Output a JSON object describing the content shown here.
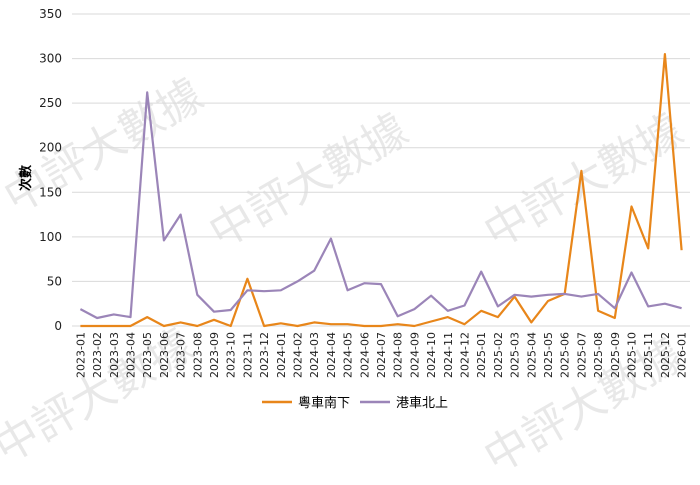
{
  "watermark": "中評大數據",
  "chart_data": {
    "type": "line",
    "ylabel": "次數",
    "ylim": [
      0,
      350
    ],
    "yticks": [
      0,
      50,
      100,
      150,
      200,
      250,
      300,
      350
    ],
    "grid": "horizontal",
    "legend_position": "bottom",
    "categories": [
      "2023-01",
      "2023-02",
      "2023-03",
      "2023-04",
      "2023-05",
      "2023-06",
      "2023-07",
      "2023-08",
      "2023-09",
      "2023-10",
      "2023-11",
      "2023-12",
      "2024-01",
      "2024-02",
      "2024-03",
      "2024-04",
      "2024-05",
      "2024-06",
      "2024-07",
      "2024-08",
      "2024-09",
      "2024-10",
      "2024-11",
      "2024-12",
      "2025-01",
      "2025-02",
      "2025-03",
      "2025-04",
      "2025-05",
      "2025-06",
      "2025-07",
      "2025-08",
      "2025-09",
      "2025-10",
      "2025-11",
      "2025-12",
      "2026-01"
    ],
    "series": [
      {
        "name": "粵車南下",
        "color": "#e8861a",
        "values": [
          0,
          0,
          0,
          0,
          10,
          0,
          4,
          0,
          7,
          0,
          53,
          0,
          3,
          0,
          4,
          2,
          2,
          0,
          0,
          2,
          0,
          5,
          10,
          2,
          17,
          10,
          33,
          4,
          28,
          36,
          174,
          17,
          9,
          134,
          87,
          305,
          85
        ]
      },
      {
        "name": "港車北上",
        "color": "#9b85b8",
        "values": [
          19,
          9,
          13,
          10,
          262,
          96,
          125,
          35,
          16,
          18,
          40,
          39,
          40,
          50,
          62,
          98,
          40,
          48,
          47,
          11,
          19,
          34,
          17,
          23,
          61,
          22,
          35,
          33,
          35,
          36,
          33,
          36,
          20,
          60,
          22,
          25,
          20
        ]
      }
    ]
  }
}
